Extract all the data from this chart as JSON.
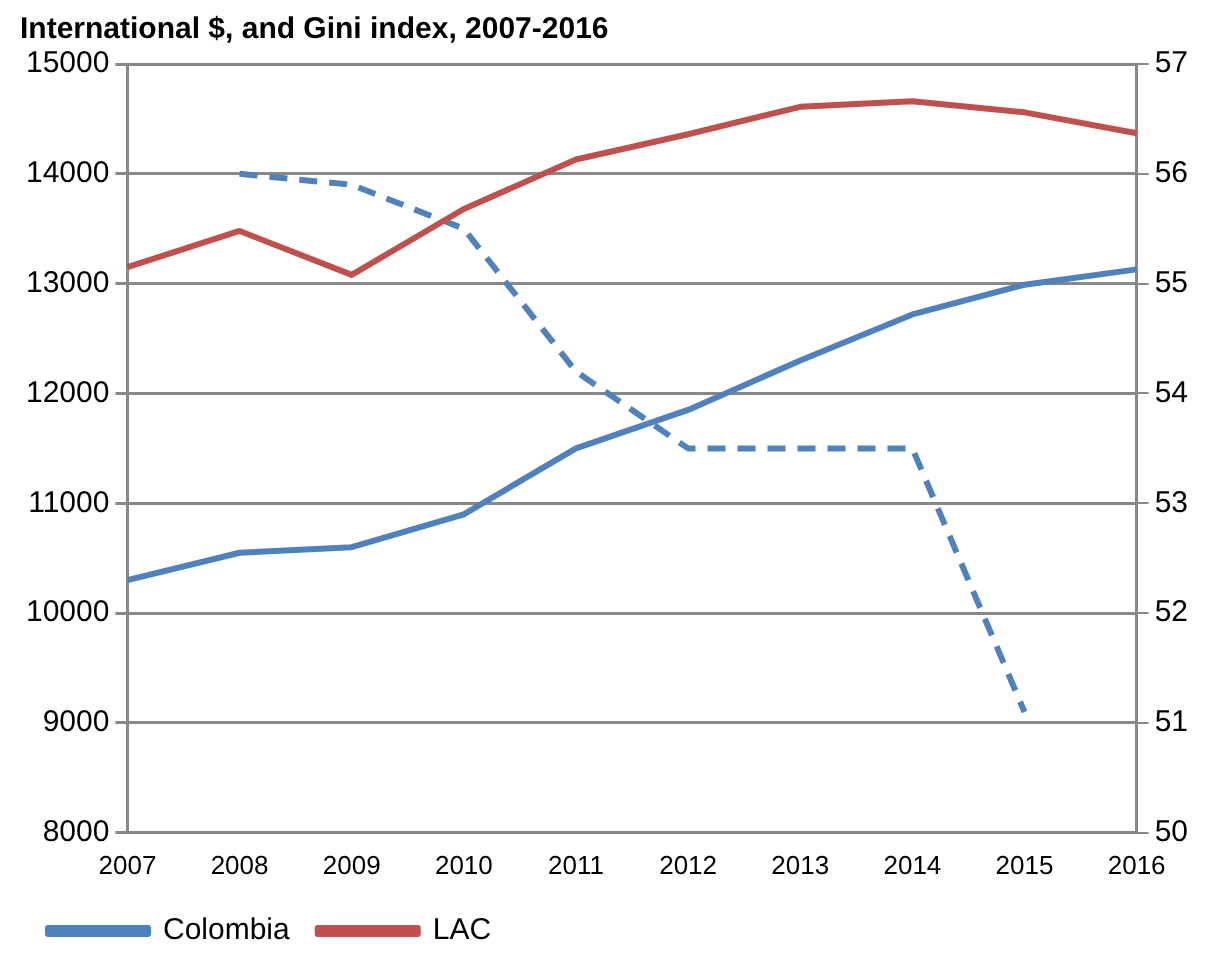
{
  "chart_data": {
    "type": "line",
    "title": "International $, and Gini index, 2007-2016",
    "categories": [
      "2007",
      "2008",
      "2009",
      "2010",
      "2011",
      "2012",
      "2013",
      "2014",
      "2015",
      "2016"
    ],
    "series": [
      {
        "name": "Colombia",
        "color": "#4f81bd",
        "values": [
          10300,
          10550,
          10600,
          10900,
          11500,
          11850,
          12300,
          12720,
          12990,
          13130
        ]
      },
      {
        "name": "LAC",
        "color": "#c0504d",
        "values": [
          13150,
          13480,
          13080,
          13680,
          14130,
          14360,
          14610,
          14660,
          14560,
          14370
        ]
      },
      {
        "color": "#4f81bd",
        "axis": "y2",
        "line_style": "dashed",
        "values": [
          null,
          56,
          55.9,
          55.5,
          54.2,
          53.5,
          53.5,
          53.5,
          51.1,
          null
        ]
      }
    ],
    "ylim": [
      8000,
      15000
    ],
    "yticks": [
      8000,
      9000,
      10000,
      11000,
      12000,
      13000,
      14000,
      15000
    ],
    "y2lim": [
      50,
      57
    ],
    "y2ticks": [
      50,
      51,
      52,
      53,
      54,
      55,
      56,
      57
    ],
    "grid": "y",
    "legend": "bottom",
    "marker": "none",
    "line_style": "solid"
  }
}
